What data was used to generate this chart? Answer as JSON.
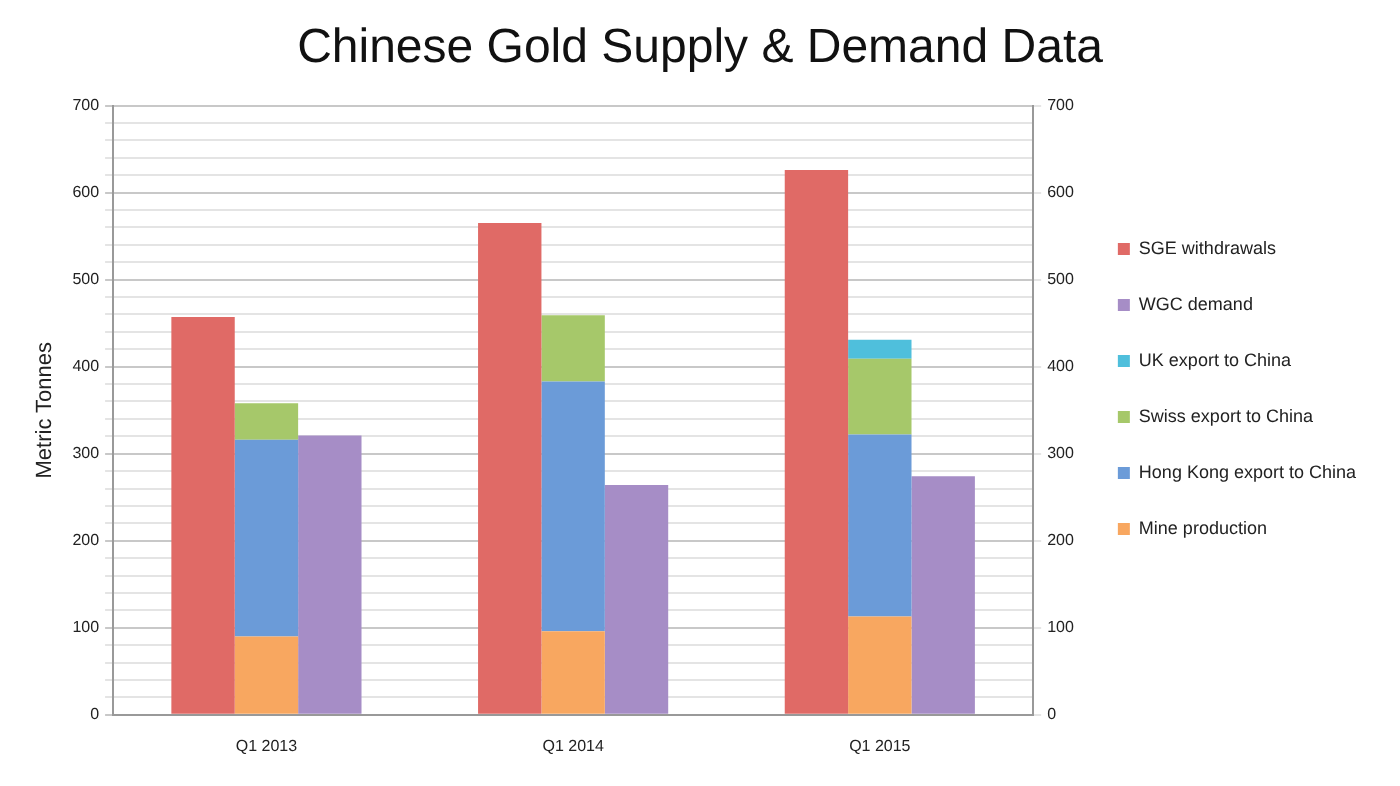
{
  "chart_data": {
    "type": "bar",
    "title": "Chinese Gold Supply & Demand Data",
    "ylabel": "Metric Tonnes",
    "categories": [
      "Q1 2013",
      "Q1 2014",
      "Q1 2015"
    ],
    "series": [
      {
        "name": "SGE withdrawals",
        "color": "#e06a66",
        "values": [
          457,
          565,
          626
        ]
      },
      {
        "name": "Mine production",
        "color": "#f8a760",
        "base": [
          0,
          0,
          0
        ],
        "values": [
          90,
          96,
          113
        ]
      },
      {
        "name": "Hong Kong export to China",
        "color": "#6b9bd8",
        "base": [
          90,
          96,
          113
        ],
        "values": [
          226,
          287,
          209
        ]
      },
      {
        "name": "Swiss export to China",
        "color": "#a6c86a",
        "base": [
          316,
          383,
          322
        ],
        "values": [
          42,
          76,
          87
        ]
      },
      {
        "name": "UK export to China",
        "color": "#4fbfdc",
        "base": [
          null,
          null,
          409
        ],
        "values": [
          null,
          null,
          22
        ]
      },
      {
        "name": "WGC demand",
        "color": "#a68dc6",
        "values": [
          321,
          264,
          274
        ]
      }
    ],
    "ylim": [
      0,
      700
    ],
    "yticks": [
      0,
      {
        "value": 20,
        "label": null
      },
      {
        "value": 40,
        "label": null
      },
      {
        "value": 60,
        "label": null
      },
      {
        "value": 80,
        "label": null
      },
      100,
      {
        "value": 120,
        "label": null
      },
      {
        "value": 140,
        "label": null
      },
      {
        "value": 160,
        "label": null
      },
      {
        "value": 180,
        "label": null
      },
      200,
      {
        "value": 220,
        "label": null
      },
      {
        "value": 240,
        "label": null
      },
      {
        "value": 260,
        "label": null
      },
      {
        "value": 280,
        "label": null
      },
      300,
      {
        "value": 320,
        "label": null
      },
      {
        "value": 340,
        "label": null
      },
      {
        "value": 360,
        "label": null
      },
      {
        "value": 380,
        "label": null
      },
      400,
      {
        "value": 420,
        "label": null
      },
      {
        "value": 440,
        "label": null
      },
      {
        "value": 460,
        "label": null
      },
      {
        "value": 480,
        "label": null
      },
      500,
      {
        "value": 520,
        "label": null
      },
      {
        "value": 540,
        "label": null
      },
      {
        "value": 560,
        "label": null
      },
      {
        "value": 580,
        "label": null
      },
      600,
      {
        "value": 620,
        "label": null
      },
      {
        "value": 640,
        "label": null
      },
      {
        "value": 660,
        "label": null
      },
      {
        "value": 680,
        "label": null
      },
      700
    ],
    "y2lim": [
      0,
      700
    ],
    "y2ticks": [
      0,
      100,
      200,
      300,
      400,
      500,
      600,
      700
    ],
    "grid": "y",
    "legend": "right"
  }
}
